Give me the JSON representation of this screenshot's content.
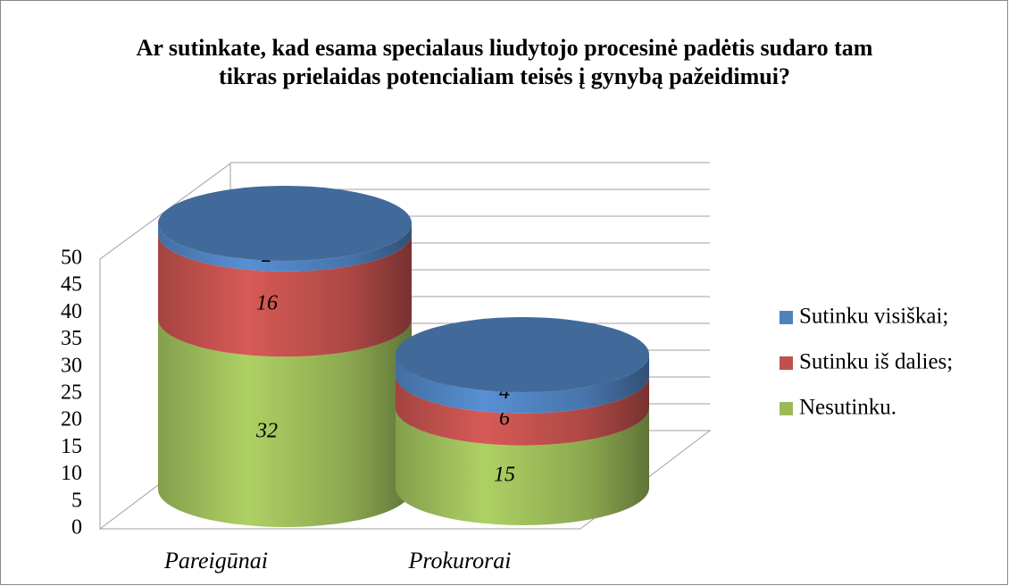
{
  "chart_data": {
    "type": "bar3d-cylinder-stacked",
    "title": "Ar sutinkate, kad esama specialaus liudytojo procesinė padėtis sudaro tam tikras prielaidas potencialiam teisės į gynybą pažeidimui?",
    "categories": [
      "Pareigūnai",
      "Prokurorai"
    ],
    "series": [
      {
        "name": "Nesutinku.",
        "color": "#9bbb59",
        "values": [
          32,
          15
        ]
      },
      {
        "name": "Sutinku iš dalies;",
        "color": "#c0504d",
        "values": [
          16,
          6
        ]
      },
      {
        "name": "Sutinku visiškai;",
        "color": "#4f81bd",
        "values": [
          2,
          4
        ]
      }
    ],
    "ylim": [
      0,
      50
    ],
    "yticks": [
      0,
      5,
      10,
      15,
      20,
      25,
      30,
      35,
      40,
      45,
      50
    ],
    "grid": true,
    "legend": "right"
  }
}
